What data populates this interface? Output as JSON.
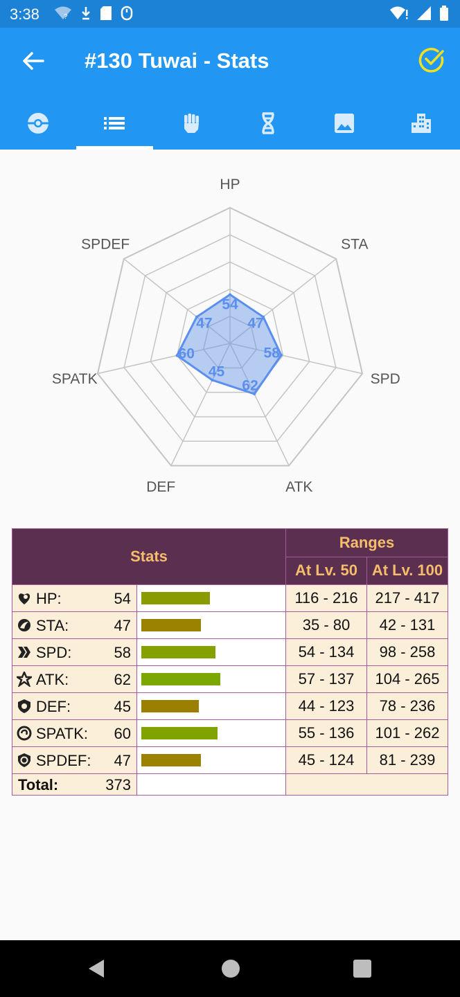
{
  "status": {
    "time": "3:38"
  },
  "header": {
    "title": "#130 Tuwai - Stats"
  },
  "tabs": [
    "pokeball-icon",
    "list-icon",
    "fist-icon",
    "dna-icon",
    "image-icon",
    "city-icon"
  ],
  "chart_data": {
    "type": "radar",
    "axes": [
      "HP",
      "STA",
      "SPD",
      "ATK",
      "DEF",
      "SPATK",
      "SPDEF"
    ],
    "values": [
      54,
      47,
      58,
      62,
      45,
      60,
      47
    ],
    "max": 150
  },
  "table": {
    "stats_header": "Stats",
    "ranges_header": "Ranges",
    "lv50_header": "At Lv. 50",
    "lv100_header": "At Lv. 100",
    "rows": [
      {
        "name": "HP:",
        "value": "54",
        "bar": 54,
        "color": "#8a9b00",
        "lv50": "116 - 216",
        "lv100": "217 - 417"
      },
      {
        "name": "STA:",
        "value": "47",
        "bar": 47,
        "color": "#9b8200",
        "lv50": "35 - 80",
        "lv100": "42 - 131"
      },
      {
        "name": "SPD:",
        "value": "58",
        "bar": 58,
        "color": "#84a100",
        "lv50": "54 - 134",
        "lv100": "98 - 258"
      },
      {
        "name": "ATK:",
        "value": "62",
        "bar": 62,
        "color": "#7ba800",
        "lv50": "57 - 137",
        "lv100": "104 - 265"
      },
      {
        "name": "DEF:",
        "value": "45",
        "bar": 45,
        "color": "#9b7f00",
        "lv50": "44 - 123",
        "lv100": "78 - 236"
      },
      {
        "name": "SPATK:",
        "value": "60",
        "bar": 60,
        "color": "#80a300",
        "lv50": "55 - 136",
        "lv100": "101 - 262"
      },
      {
        "name": "SPDEF:",
        "value": "47",
        "bar": 47,
        "color": "#9b8200",
        "lv50": "45 - 124",
        "lv100": "81 - 239"
      }
    ],
    "total_label": "Total:",
    "total_value": "373"
  }
}
